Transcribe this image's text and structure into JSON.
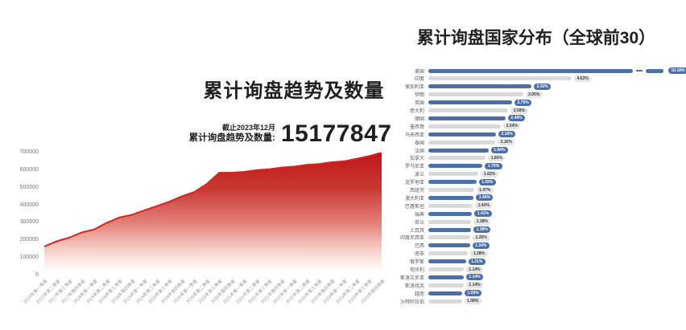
{
  "accent_colors": {
    "bar_blue": "#4a6fab",
    "bar_gray": "#d9d9d9",
    "area_red": "#bd161b",
    "line_red": "#d8231f"
  },
  "chart_data": [
    {
      "type": "area",
      "title": "累计询盘趋势及数量",
      "annotation": {
        "date": "截止2023年12月",
        "label": "累计询盘趋势及数量:",
        "value": "15177847"
      },
      "x": [
        "2017年第一季度",
        "2017年第二季度",
        "2017年第三季度",
        "2017年第四季度",
        "2018年第一季度",
        "2018年第二季度",
        "2018年第三季度",
        "2018年第四季度",
        "2019年第一季度",
        "2019年第二季度",
        "2019年第三季度",
        "2019年第四季度",
        "2020年第一季度",
        "2020年第二季度",
        "2020年第三季度",
        "2020年第四季度",
        "2021年第一季度",
        "2021年第二季度",
        "2021年第三季度",
        "2021年第四季度",
        "2022年第一季度",
        "2022年第二季度",
        "2022年第三季度",
        "2022年第四季度",
        "2023年第一季度",
        "2023年第二季度",
        "2023年第三季度",
        "2023年第四季度"
      ],
      "values": [
        165000,
        195000,
        215000,
        245000,
        262000,
        300000,
        330000,
        345000,
        370000,
        395000,
        420000,
        450000,
        475000,
        520000,
        585000,
        585000,
        590000,
        600000,
        605000,
        615000,
        620000,
        630000,
        635000,
        645000,
        650000,
        665000,
        680000,
        700000
      ],
      "ylim": [
        0,
        700000
      ],
      "yticks": [
        0,
        100000,
        200000,
        300000,
        400000,
        500000,
        600000,
        700000
      ],
      "grid": false,
      "legend": "none",
      "line_color": "#d8231f",
      "fill_gradient": [
        "#bd161b",
        "#ffffff"
      ]
    },
    {
      "type": "bar",
      "orientation": "horizontal",
      "title": "累计询盘国家分布（全球前30）",
      "categories": [
        "美国",
        "印度",
        "保加利亚",
        "伊朗",
        "英国",
        "意大利",
        "德国",
        "墨西哥",
        "马来西亚",
        "泰国",
        "法国",
        "加拿大",
        "罗马尼亚",
        "波兰",
        "克罗地亚",
        "西班牙",
        "澳大利亚",
        "巴基斯坦",
        "瑞典",
        "荷兰",
        "土耳其",
        "印度尼西亚",
        "巴西",
        "南非",
        "俄罗斯",
        "匈牙利",
        "斯洛文尼亚",
        "斯洛伐克",
        "越南",
        "沙特阿拉伯"
      ],
      "values": [
        10.18,
        4.62,
        3.32,
        3.05,
        2.7,
        2.58,
        2.49,
        2.34,
        2.18,
        2.16,
        1.94,
        1.85,
        1.75,
        1.62,
        1.55,
        1.47,
        1.46,
        1.43,
        1.41,
        1.38,
        1.38,
        1.35,
        1.34,
        1.28,
        1.21,
        1.14,
        1.14,
        1.14,
        1.09,
        1.08
      ],
      "labels": [
        "10.18%",
        "4.62%",
        "3.32%",
        "3.05%",
        "2.70%",
        "2.58%",
        "2.49%",
        "2.34%",
        "2.18%",
        "2.16%",
        "1.94%",
        "1.85%",
        "1.75%",
        "1.62%",
        "1.55%",
        "1.47%",
        "1.46%",
        "1.43%",
        "1.41%",
        "1.38%",
        "1.38%",
        "1.35%",
        "1.34%",
        "1.28%",
        "1.21%",
        "1.14%",
        "1.14%",
        "1.14%",
        "1.09%",
        "1.08%"
      ],
      "first_bar_axis_break": true,
      "inner_scale_max": 4.62,
      "color_rule": "odd rows blue, even rows gray",
      "legend": "none"
    }
  ]
}
